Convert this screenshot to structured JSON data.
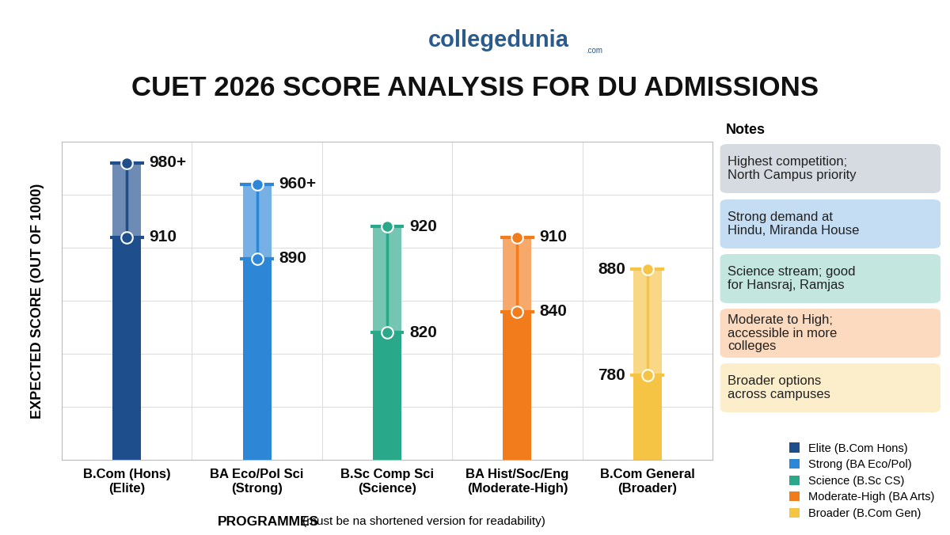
{
  "chart_data": {
    "type": "range_bar",
    "logo": "collegedunia",
    "logo_suffix": ".com",
    "title": "CUET 2026 SCORE ANALYSIS FOR DU ADMISSIONS",
    "ylabel": "EXPECTED SCORE (OUT OF 1000)",
    "xlabel": "PROGRAMMES",
    "xlabel_note": "(must be na shortened version for readability)",
    "categories": [
      "B.Com (Hons)\n(Elite)",
      "BA Eco/Pol Sci\n(Strong)",
      "B.Sc Comp Sci\n(Science)",
      "BA Hist/Soc/Eng\n(Moderate-High)",
      "B.Com General\n(Broader)"
    ],
    "values": [
      980,
      960,
      920,
      910,
      880
    ],
    "value_labels": [
      "980+",
      "960+",
      "920",
      "910",
      "880"
    ],
    "low": [
      910,
      890,
      820,
      840,
      780
    ],
    "colors": [
      "#1f4e8c",
      "#2e86d6",
      "#2aa88a",
      "#f27c1c",
      "#f6c445"
    ],
    "ylim": [
      700,
      1000
    ],
    "yticks": [
      700,
      750,
      800,
      850,
      900,
      950,
      1000
    ],
    "tick_labels": "x",
    "grid": true,
    "data_labels": true,
    "notes_title": "Notes",
    "notes": [
      "Highest competition;\nNorth Campus priority",
      "Strong demand at\nHindu, Miranda House",
      "Science stream; good\nfor Hansraj, Ramjas",
      "Moderate to High;\naccessible in more\ncolleges",
      "Broader options\nacross campuses"
    ],
    "legend_entries": [
      "Elite (B.Com Hons)",
      "Strong (BA Eco/Pol)",
      "Science (B.Sc CS)",
      "Moderate-High (BA Arts)",
      "Broader (B.Com Gen)"
    ],
    "legend": "lower right"
  }
}
